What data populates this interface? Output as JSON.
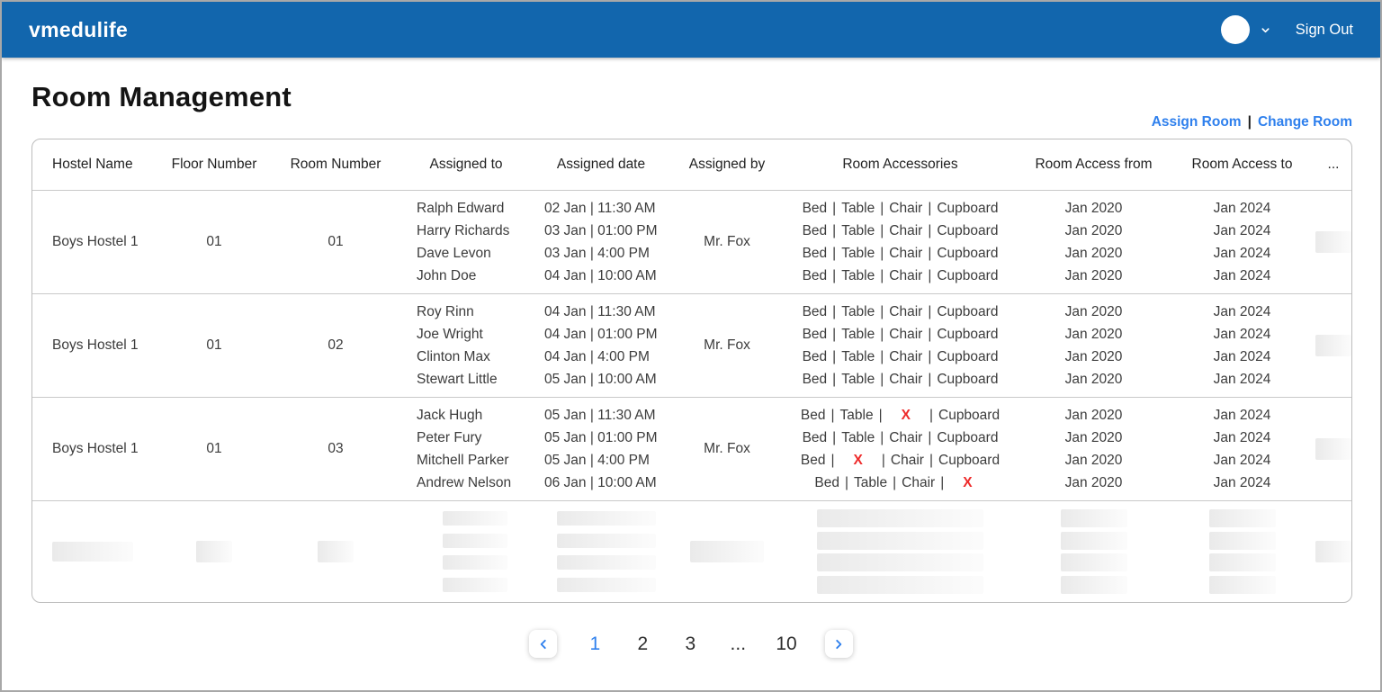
{
  "navbar": {
    "brand": "vmedulife",
    "sign_out_label": "Sign Out"
  },
  "page": {
    "title": "Room Management",
    "actions": {
      "assign": "Assign Room",
      "separator": "|",
      "change": "Change Room"
    }
  },
  "table": {
    "columns": [
      "Hostel Name",
      "Floor Number",
      "Room Number",
      "Assigned to",
      "Assigned date",
      "Assigned by",
      "Room Accessories",
      "Room Access from",
      "Room Access to",
      "..."
    ],
    "groups": [
      {
        "hostel_name": "Boys Hostel 1",
        "floor_number": "01",
        "room_number": "01",
        "assigned_by": "Mr. Fox",
        "entries": [
          {
            "assigned_to": "Ralph Edward",
            "assigned_date": "02 Jan | 11:30 AM",
            "accessories": [
              {
                "text": "Bed"
              },
              {
                "text": "Table"
              },
              {
                "text": "Chair"
              },
              {
                "text": "Cupboard"
              }
            ],
            "access_from": "Jan 2020",
            "access_to": "Jan 2024"
          },
          {
            "assigned_to": "Harry Richards",
            "assigned_date": "03 Jan | 01:00 PM",
            "accessories": [
              {
                "text": "Bed"
              },
              {
                "text": "Table"
              },
              {
                "text": "Chair"
              },
              {
                "text": "Cupboard"
              }
            ],
            "access_from": "Jan 2020",
            "access_to": "Jan 2024"
          },
          {
            "assigned_to": "Dave Levon",
            "assigned_date": "03 Jan | 4:00 PM",
            "accessories": [
              {
                "text": "Bed"
              },
              {
                "text": "Table"
              },
              {
                "text": "Chair"
              },
              {
                "text": "Cupboard"
              }
            ],
            "access_from": "Jan 2020",
            "access_to": "Jan 2024"
          },
          {
            "assigned_to": "John Doe",
            "assigned_date": "04 Jan | 10:00 AM",
            "accessories": [
              {
                "text": "Bed"
              },
              {
                "text": "Table"
              },
              {
                "text": "Chair"
              },
              {
                "text": "Cupboard"
              }
            ],
            "access_from": "Jan 2020",
            "access_to": "Jan 2024"
          }
        ]
      },
      {
        "hostel_name": "Boys Hostel 1",
        "floor_number": "01",
        "room_number": "02",
        "assigned_by": "Mr. Fox",
        "entries": [
          {
            "assigned_to": "Roy Rinn",
            "assigned_date": "04 Jan | 11:30 AM",
            "accessories": [
              {
                "text": "Bed"
              },
              {
                "text": "Table"
              },
              {
                "text": "Chair"
              },
              {
                "text": "Cupboard"
              }
            ],
            "access_from": "Jan 2020",
            "access_to": "Jan 2024"
          },
          {
            "assigned_to": "Joe Wright",
            "assigned_date": "04 Jan | 01:00 PM",
            "accessories": [
              {
                "text": "Bed"
              },
              {
                "text": "Table"
              },
              {
                "text": "Chair"
              },
              {
                "text": "Cupboard"
              }
            ],
            "access_from": "Jan 2020",
            "access_to": "Jan 2024"
          },
          {
            "assigned_to": "Clinton Max",
            "assigned_date": "04 Jan | 4:00 PM",
            "accessories": [
              {
                "text": "Bed"
              },
              {
                "text": "Table"
              },
              {
                "text": "Chair"
              },
              {
                "text": "Cupboard"
              }
            ],
            "access_from": "Jan 2020",
            "access_to": "Jan 2024"
          },
          {
            "assigned_to": "Stewart Little",
            "assigned_date": "05 Jan | 10:00 AM",
            "accessories": [
              {
                "text": "Bed"
              },
              {
                "text": "Table"
              },
              {
                "text": "Chair"
              },
              {
                "text": "Cupboard"
              }
            ],
            "access_from": "Jan 2020",
            "access_to": "Jan 2024"
          }
        ]
      },
      {
        "hostel_name": "Boys Hostel 1",
        "floor_number": "01",
        "room_number": "03",
        "assigned_by": "Mr. Fox",
        "entries": [
          {
            "assigned_to": "Jack Hugh",
            "assigned_date": "05 Jan | 11:30 AM",
            "accessories": [
              {
                "text": "Bed"
              },
              {
                "text": "Table"
              },
              {
                "text": "X",
                "missing": true
              },
              {
                "text": "Cupboard"
              }
            ],
            "access_from": "Jan 2020",
            "access_to": "Jan 2024"
          },
          {
            "assigned_to": "Peter Fury",
            "assigned_date": "05 Jan | 01:00 PM",
            "accessories": [
              {
                "text": "Bed"
              },
              {
                "text": "Table"
              },
              {
                "text": "Chair"
              },
              {
                "text": "Cupboard"
              }
            ],
            "access_from": "Jan 2020",
            "access_to": "Jan 2024"
          },
          {
            "assigned_to": "Mitchell Parker",
            "assigned_date": "05 Jan | 4:00 PM",
            "accessories": [
              {
                "text": "Bed"
              },
              {
                "text": "X",
                "missing": true
              },
              {
                "text": "Chair"
              },
              {
                "text": "Cupboard"
              }
            ],
            "access_from": "Jan 2020",
            "access_to": "Jan 2024"
          },
          {
            "assigned_to": "Andrew Nelson",
            "assigned_date": "06 Jan | 10:00 AM",
            "accessories": [
              {
                "text": "Bed"
              },
              {
                "text": "Table"
              },
              {
                "text": "Chair"
              },
              {
                "text": "X",
                "missing": true
              }
            ],
            "access_from": "Jan 2020",
            "access_to": "Jan 2024"
          }
        ]
      }
    ],
    "accessory_separator": "|"
  },
  "pagination": {
    "pages": [
      "1",
      "2",
      "3",
      "...",
      "10"
    ],
    "active": "1"
  },
  "colors": {
    "navbar_bg": "#1266ad",
    "link_accent": "#2f80ed",
    "missing_red": "#ee2b2b"
  }
}
